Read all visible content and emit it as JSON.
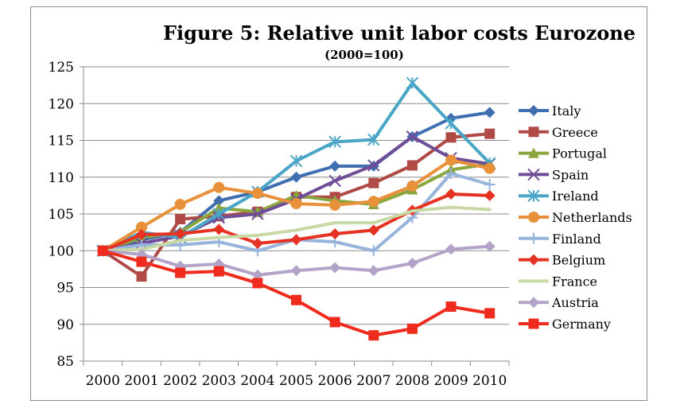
{
  "chart_data": {
    "type": "line",
    "title": "Figure 5: Relative unit labor costs Eurozone",
    "subtitle": "(2000=100)",
    "xlabel": "",
    "ylabel": "",
    "x": [
      "2000",
      "2001",
      "2002",
      "2003",
      "2004",
      "2005",
      "2006",
      "2007",
      "2008",
      "2009",
      "2010"
    ],
    "ylim": [
      85,
      125
    ],
    "yticks": [
      85,
      90,
      95,
      100,
      105,
      110,
      115,
      120,
      125
    ],
    "grid": "horizontal",
    "legend_position": "right",
    "series": [
      {
        "name": "Italy",
        "color": "#3f6fb0",
        "marker": "diamond",
        "values": [
          100,
          101.5,
          102.5,
          106.8,
          108.0,
          110.0,
          111.5,
          111.5,
          115.5,
          118.0,
          118.8
        ]
      },
      {
        "name": "Greece",
        "color": "#b04a47",
        "marker": "square",
        "values": [
          100,
          96.5,
          104.3,
          104.7,
          105.3,
          107.3,
          107.3,
          109.2,
          111.6,
          115.4,
          115.9
        ]
      },
      {
        "name": "Portugal",
        "color": "#8aa63d",
        "marker": "triangle",
        "values": [
          100,
          101.8,
          102.5,
          105.8,
          105.3,
          107.5,
          106.8,
          106.3,
          108.3,
          111.0,
          111.8
        ]
      },
      {
        "name": "Spain",
        "color": "#6f4d97",
        "marker": "x",
        "values": [
          100,
          101.0,
          102.0,
          104.5,
          105.0,
          107.0,
          109.5,
          111.6,
          115.5,
          112.6,
          111.8
        ]
      },
      {
        "name": "Ireland",
        "color": "#4aa6c6",
        "marker": "asterisk",
        "values": [
          100,
          102.5,
          101.8,
          105.0,
          108.0,
          112.2,
          114.8,
          115.1,
          122.8,
          117.3,
          111.9
        ]
      },
      {
        "name": "Netherlands",
        "color": "#e8913a",
        "marker": "circle",
        "values": [
          100,
          103.2,
          106.3,
          108.6,
          107.8,
          106.4,
          106.2,
          106.7,
          108.8,
          112.3,
          111.2
        ]
      },
      {
        "name": "Finland",
        "color": "#97b4dc",
        "marker": "plus",
        "values": [
          100,
          100.8,
          100.8,
          101.2,
          100.0,
          101.5,
          101.2,
          100.0,
          104.5,
          110.5,
          109.0
        ]
      },
      {
        "name": "Belgium",
        "color": "#e53222",
        "marker": "diamond",
        "values": [
          100,
          102.2,
          102.3,
          102.9,
          101.0,
          101.5,
          102.3,
          102.8,
          105.5,
          107.7,
          107.5
        ]
      },
      {
        "name": "France",
        "color": "#c8d9a5",
        "marker": "none",
        "values": [
          100,
          100.2,
          101.4,
          101.8,
          102.1,
          102.8,
          103.8,
          103.8,
          105.4,
          105.9,
          105.6
        ]
      },
      {
        "name": "Austria",
        "color": "#b3a3c9",
        "marker": "diamond",
        "values": [
          100,
          99.5,
          97.9,
          98.2,
          96.7,
          97.3,
          97.7,
          97.3,
          98.3,
          100.2,
          100.6
        ]
      },
      {
        "name": "Germany",
        "color": "#ee2b1c",
        "marker": "square",
        "values": [
          100,
          98.5,
          97.0,
          97.2,
          95.6,
          93.3,
          90.3,
          88.5,
          89.4,
          92.4,
          91.5
        ]
      }
    ]
  }
}
